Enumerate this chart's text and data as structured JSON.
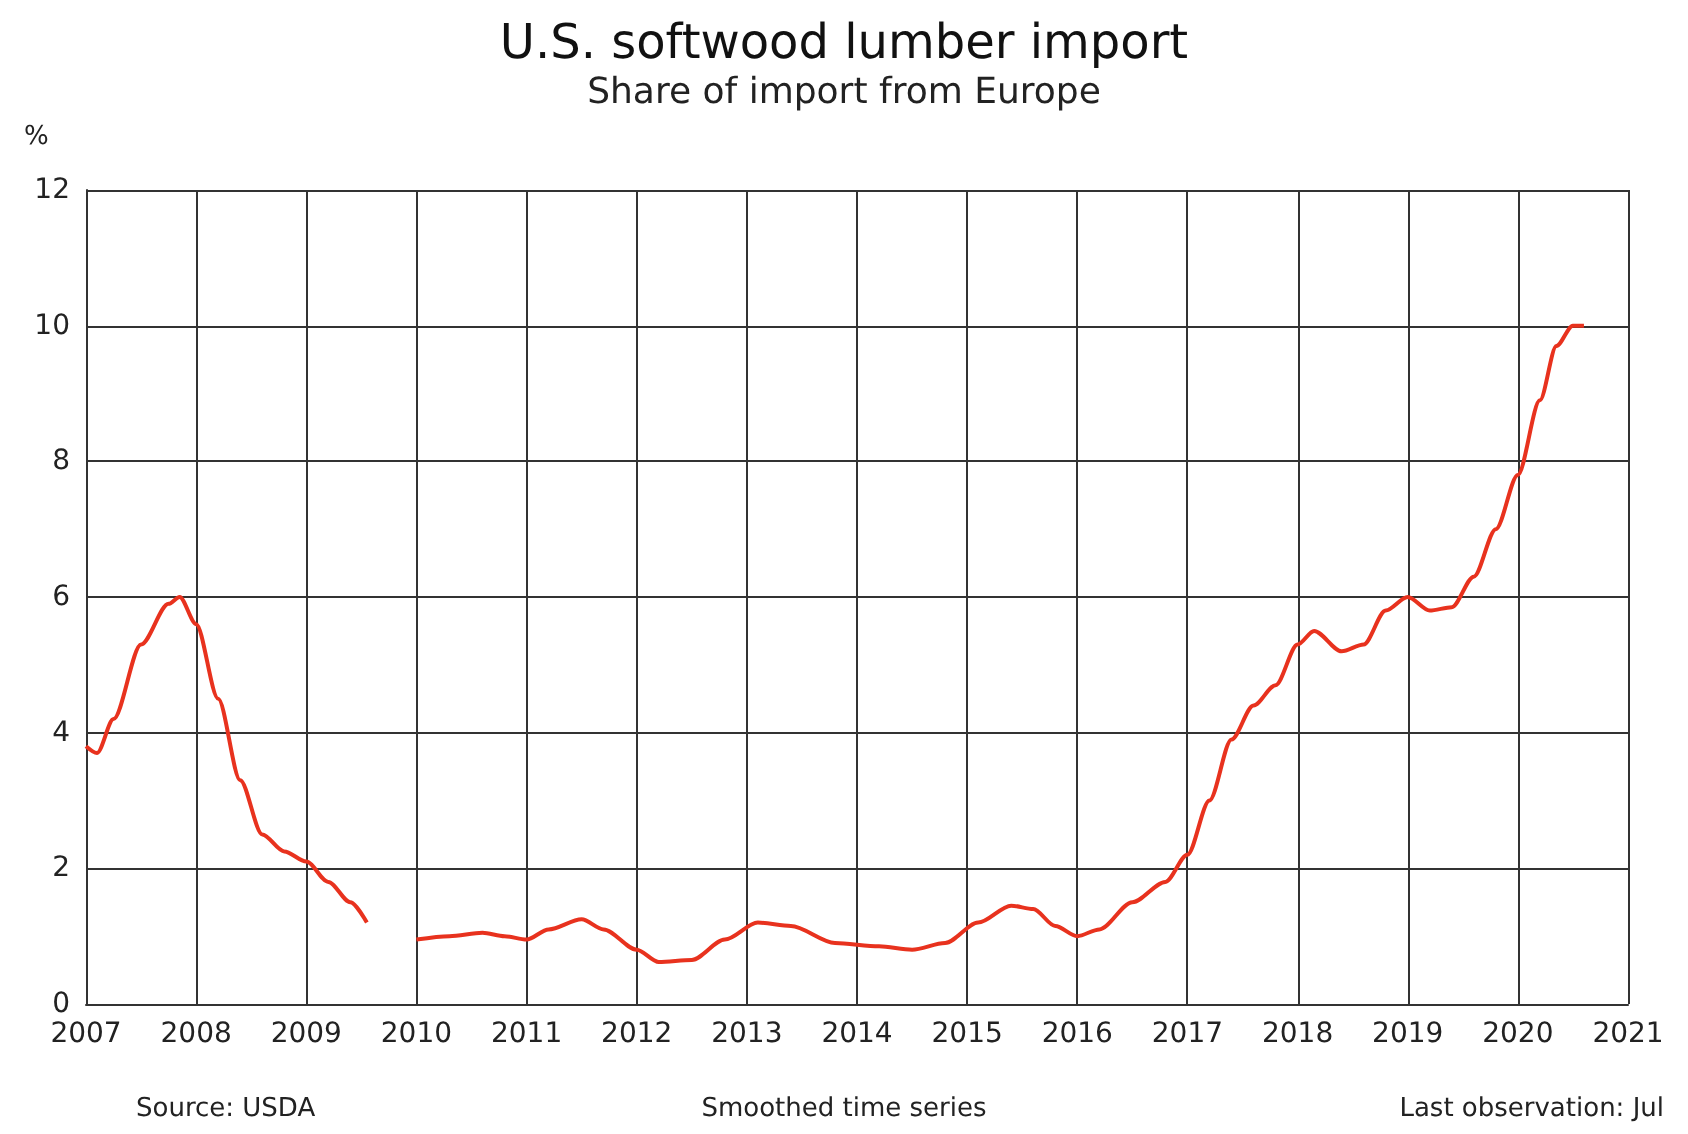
{
  "chart_data": {
    "type": "line",
    "title": "U.S. softwood lumber import",
    "subtitle": "Share of import from Europe",
    "ylabel": "%",
    "annotations": [
      "Source: USDA",
      "Smoothed time series",
      "Last observation: Jul"
    ],
    "x": [
      2007.0,
      2007.1,
      2007.25,
      2007.5,
      2007.75,
      2007.85,
      2008.0,
      2008.2,
      2008.4,
      2008.6,
      2008.8,
      2009.0,
      2009.2,
      2009.4,
      2009.55,
      2009.8,
      2010.0,
      2010.3,
      2010.6,
      2010.8,
      2011.0,
      2011.2,
      2011.5,
      2011.7,
      2012.0,
      2012.2,
      2012.5,
      2012.8,
      2013.1,
      2013.4,
      2013.8,
      2014.2,
      2014.5,
      2014.8,
      2015.1,
      2015.4,
      2015.6,
      2015.8,
      2016.0,
      2016.2,
      2016.5,
      2016.8,
      2017.0,
      2017.2,
      2017.4,
      2017.6,
      2017.8,
      2018.0,
      2018.15,
      2018.4,
      2018.6,
      2018.8,
      2019.0,
      2019.2,
      2019.4,
      2019.6,
      2019.8,
      2020.0,
      2020.2,
      2020.35,
      2020.5,
      2020.6
    ],
    "series": [
      {
        "color": "#e8321e",
        "values": [
          3.8,
          3.7,
          4.2,
          5.3,
          5.9,
          6.0,
          5.6,
          4.5,
          3.3,
          2.5,
          2.25,
          2.1,
          1.8,
          1.5,
          1.2,
          null,
          0.95,
          1.0,
          1.05,
          1.0,
          0.95,
          1.1,
          1.25,
          1.1,
          0.8,
          0.62,
          0.65,
          0.95,
          1.2,
          1.15,
          0.9,
          0.85,
          0.8,
          0.9,
          1.2,
          1.45,
          1.4,
          1.15,
          1.0,
          1.1,
          1.5,
          1.8,
          2.2,
          3.0,
          3.9,
          4.4,
          4.7,
          5.3,
          5.5,
          5.2,
          5.3,
          5.8,
          6.0,
          5.8,
          5.85,
          6.3,
          7.0,
          7.8,
          8.9,
          9.7,
          10.0,
          10.0
        ]
      }
    ],
    "xlim": [
      2007,
      2021
    ],
    "xticks": [
      2007,
      2008,
      2009,
      2010,
      2011,
      2012,
      2013,
      2014,
      2015,
      2016,
      2017,
      2018,
      2019,
      2020,
      2021
    ],
    "ylim": [
      0,
      12
    ],
    "yticks": [
      0,
      2,
      4,
      6,
      8,
      10,
      12
    ],
    "grid": true,
    "marker": "none",
    "line_style": "solid"
  }
}
